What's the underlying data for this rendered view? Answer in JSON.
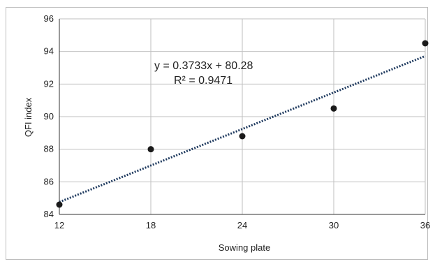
{
  "chart_data": {
    "type": "scatter",
    "xlabel": "Sowing plate",
    "ylabel": "QFI index",
    "x_ticks": [
      12,
      18,
      24,
      30,
      36
    ],
    "y_ticks": [
      84,
      86,
      88,
      90,
      92,
      94,
      96
    ],
    "xlim": [
      12,
      36
    ],
    "ylim": [
      84,
      96
    ],
    "grid": true,
    "points": [
      {
        "x": 12,
        "y": 84.6
      },
      {
        "x": 18,
        "y": 88.0
      },
      {
        "x": 24,
        "y": 88.8
      },
      {
        "x": 30,
        "y": 90.5
      },
      {
        "x": 36,
        "y": 94.5
      }
    ],
    "trendline": {
      "type": "linear",
      "slope": 0.3733,
      "intercept": 80.28,
      "style": "dotted",
      "equation_label": "y = 0.3733x + 80.28",
      "r2_label": "R² = 0.9471"
    },
    "colors": {
      "points": "#1a1a1a",
      "trendline": "#1f3a5f",
      "grid": "#bfbfbf",
      "axis": "#333333"
    }
  }
}
